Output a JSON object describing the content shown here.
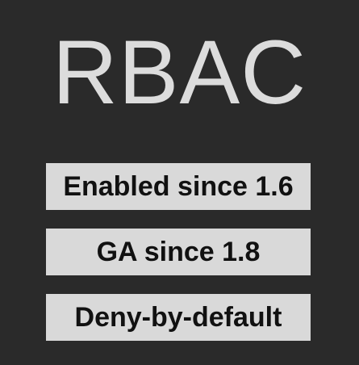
{
  "title": "RBAC",
  "badges": [
    {
      "label": "Enabled since 1.6"
    },
    {
      "label": "GA since 1.8"
    },
    {
      "label": "Deny-by-default"
    }
  ],
  "colors": {
    "background": "#2a2a2a",
    "title_text": "#dcdcdc",
    "badge_background": "#d9d9d9",
    "badge_text": "#111111"
  }
}
